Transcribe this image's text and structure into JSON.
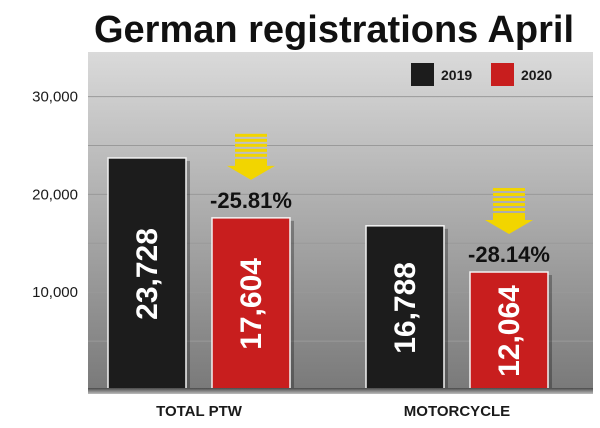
{
  "chart_data": {
    "type": "bar",
    "title": "German registrations April",
    "categories": [
      "TOTAL PTW",
      "MOTORCYCLE"
    ],
    "series": [
      {
        "name": "2019",
        "values": [
          23728,
          16788
        ],
        "labels": [
          "23,728",
          "16,788"
        ],
        "color": "#1c1c1c"
      },
      {
        "name": "2020",
        "values": [
          17604,
          12064
        ],
        "labels": [
          "17,604",
          "12,064"
        ],
        "color": "#c81e1e"
      }
    ],
    "changes": [
      "-25.81%",
      "-28.14%"
    ],
    "yticks": [
      {
        "value": 10000,
        "label": "10,000"
      },
      {
        "value": 20000,
        "label": "20,000"
      },
      {
        "value": 30000,
        "label": "30,000"
      }
    ],
    "ylim": [
      0,
      35000
    ],
    "grid": true,
    "legend_position": "top-right",
    "colors": {
      "panel_top": "#dadada",
      "panel_bottom": "#7a7a7a",
      "arrow": "#f2d500",
      "gridline": "#9a9a9a"
    }
  }
}
